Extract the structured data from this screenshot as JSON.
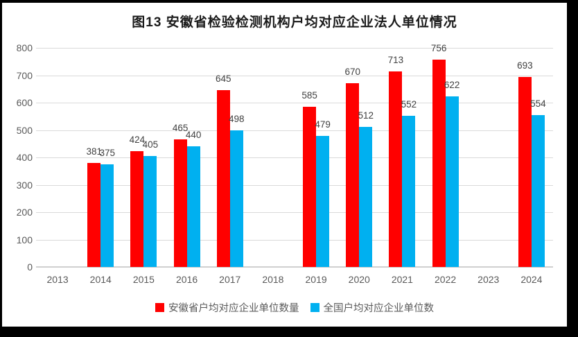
{
  "title": "图13  安徽省检验检测机构户均对应企业法人单位情况",
  "chart_data": {
    "type": "bar",
    "title": "图13  安徽省检验检测机构户均对应企业法人单位情况",
    "categories": [
      "2013",
      "2014",
      "2015",
      "2016",
      "2017",
      "2018",
      "2019",
      "2020",
      "2021",
      "2022",
      "2023",
      "2024"
    ],
    "series": [
      {
        "name": "安徽省户均对应企业单位数量",
        "color": "#FF0000",
        "values": [
          null,
          381,
          424,
          465,
          645,
          null,
          585,
          670,
          713,
          756,
          null,
          693
        ]
      },
      {
        "name": "全国户均对应企业单位数",
        "color": "#00B0F0",
        "values": [
          null,
          375,
          405,
          440,
          498,
          null,
          479,
          512,
          552,
          622,
          null,
          554
        ]
      }
    ],
    "ylim": [
      0,
      800
    ],
    "yticks": [
      0,
      100,
      200,
      300,
      400,
      500,
      600,
      700,
      800
    ],
    "grid": true,
    "legend_position": "bottom",
    "show_bar_labels": true
  },
  "style": {
    "frame_color": "#000000",
    "background": "#FFFFFF",
    "gridline_color": "#D9D9D9",
    "axis_label_color": "#595959",
    "bar_label_color": "#404040",
    "title_color": "#1A1A1A"
  }
}
